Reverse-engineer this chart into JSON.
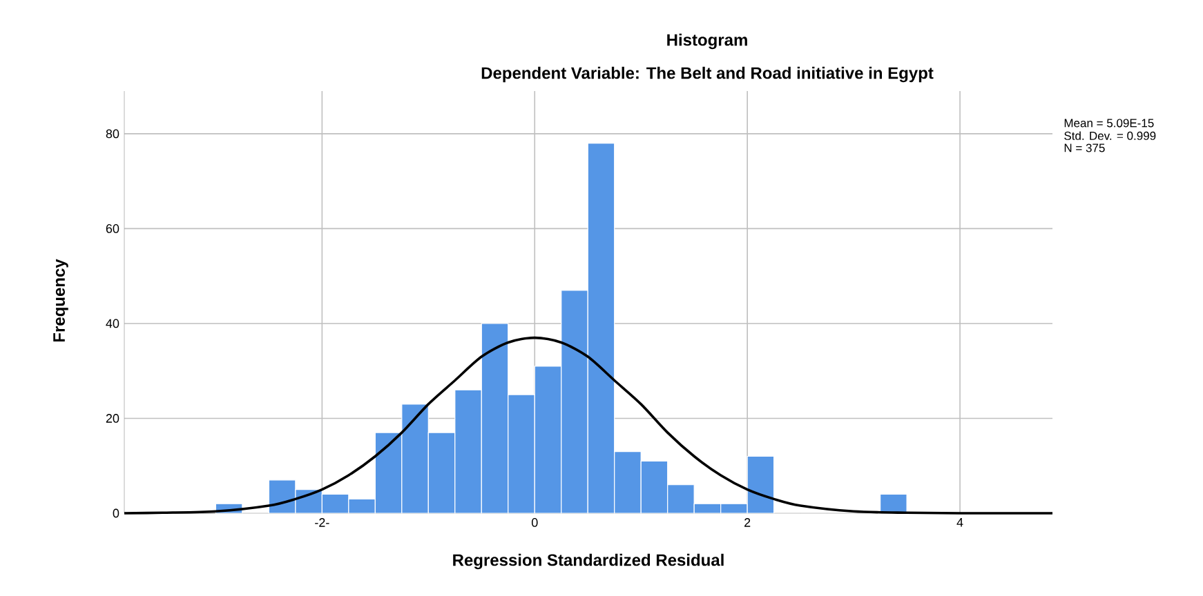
{
  "chart_data": {
    "type": "histogram",
    "title": "Histogram",
    "subtitle": "Dependent Variable: The Belt and Road initiative in Egypt",
    "xlabel": "Regression Standardized Residual",
    "ylabel": "Frequency",
    "bins": [
      -3.0,
      -2.75,
      -2.5,
      -2.25,
      -2.0,
      -1.75,
      -1.5,
      -1.25,
      -1.0,
      -0.75,
      -0.5,
      -0.25,
      0.0,
      0.25,
      0.5,
      0.75,
      1.0,
      1.25,
      1.5,
      1.75,
      2.0,
      2.25,
      2.5,
      2.75,
      3.0,
      3.25,
      3.5
    ],
    "values": [
      2,
      0,
      7,
      5,
      4,
      3,
      17,
      23,
      17,
      26,
      40,
      25,
      31,
      47,
      78,
      13,
      11,
      6,
      2,
      2,
      12,
      0,
      0,
      0,
      0,
      4
    ],
    "color": "#5596e6",
    "series": [
      {
        "type": "line",
        "color": "#000000",
        "x": [
          -3.86,
          -3.5,
          -3.0,
          -2.5,
          -2.25,
          -2.0,
          -1.75,
          -1.5,
          -1.25,
          -1.0,
          -0.75,
          -0.5,
          -0.25,
          0.0,
          0.25,
          0.5,
          0.75,
          1.0,
          1.25,
          1.5,
          1.75,
          2.0,
          2.25,
          2.5,
          3.0,
          3.5,
          4.0,
          4.87
        ],
        "values": [
          0,
          0.1,
          0.4,
          1.6,
          3,
          5,
          8,
          12,
          17,
          23,
          28,
          33,
          36,
          37,
          36,
          33,
          28,
          23,
          17,
          12,
          8,
          5,
          3,
          1.6,
          0.4,
          0.1,
          0,
          0
        ]
      }
    ],
    "xlim": [
      -3.86,
      4.87
    ],
    "ylim": [
      0,
      89
    ],
    "xticks": [
      {
        "value": -2,
        "label": "-2-"
      },
      0,
      2,
      4
    ],
    "yticks": [
      0,
      20,
      40,
      60,
      80
    ],
    "grid": true,
    "annotations": [
      "Mean = 5.09E-15",
      "Std. Dev. = 0.999",
      "N = 375"
    ]
  }
}
